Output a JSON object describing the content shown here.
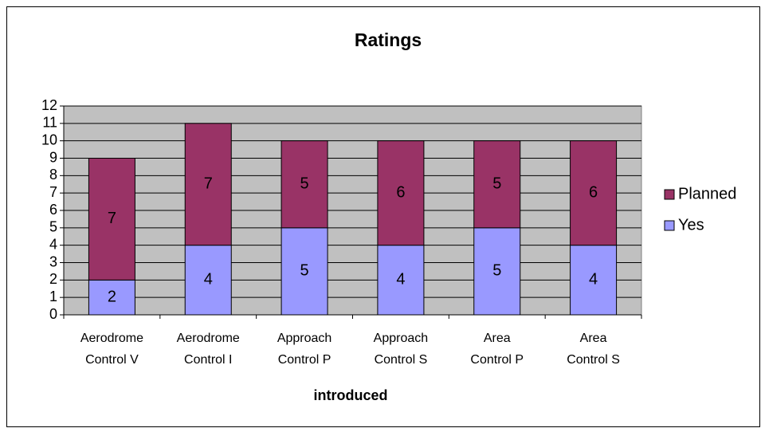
{
  "chart_data": {
    "type": "stacked_bar",
    "title": "Ratings",
    "x_label": "introduced",
    "categories": [
      [
        "Aerodrome",
        "Control V"
      ],
      [
        "Aerodrome",
        "Control I"
      ],
      [
        "Approach",
        "Control P"
      ],
      [
        "Approach",
        "Control S"
      ],
      [
        "Area",
        "Control P"
      ],
      [
        "Area",
        "Control S"
      ]
    ],
    "series": [
      {
        "name": "Yes",
        "color": "#9999ff",
        "values": [
          2,
          4,
          5,
          4,
          5,
          4
        ]
      },
      {
        "name": "Planned",
        "color": "#993366",
        "values": [
          7,
          7,
          5,
          6,
          5,
          6
        ]
      }
    ],
    "ylim": [
      0,
      12
    ],
    "yticks": [
      0,
      1,
      2,
      3,
      4,
      5,
      6,
      7,
      8,
      9,
      10,
      11,
      12
    ],
    "grid": true,
    "legend": "right"
  }
}
